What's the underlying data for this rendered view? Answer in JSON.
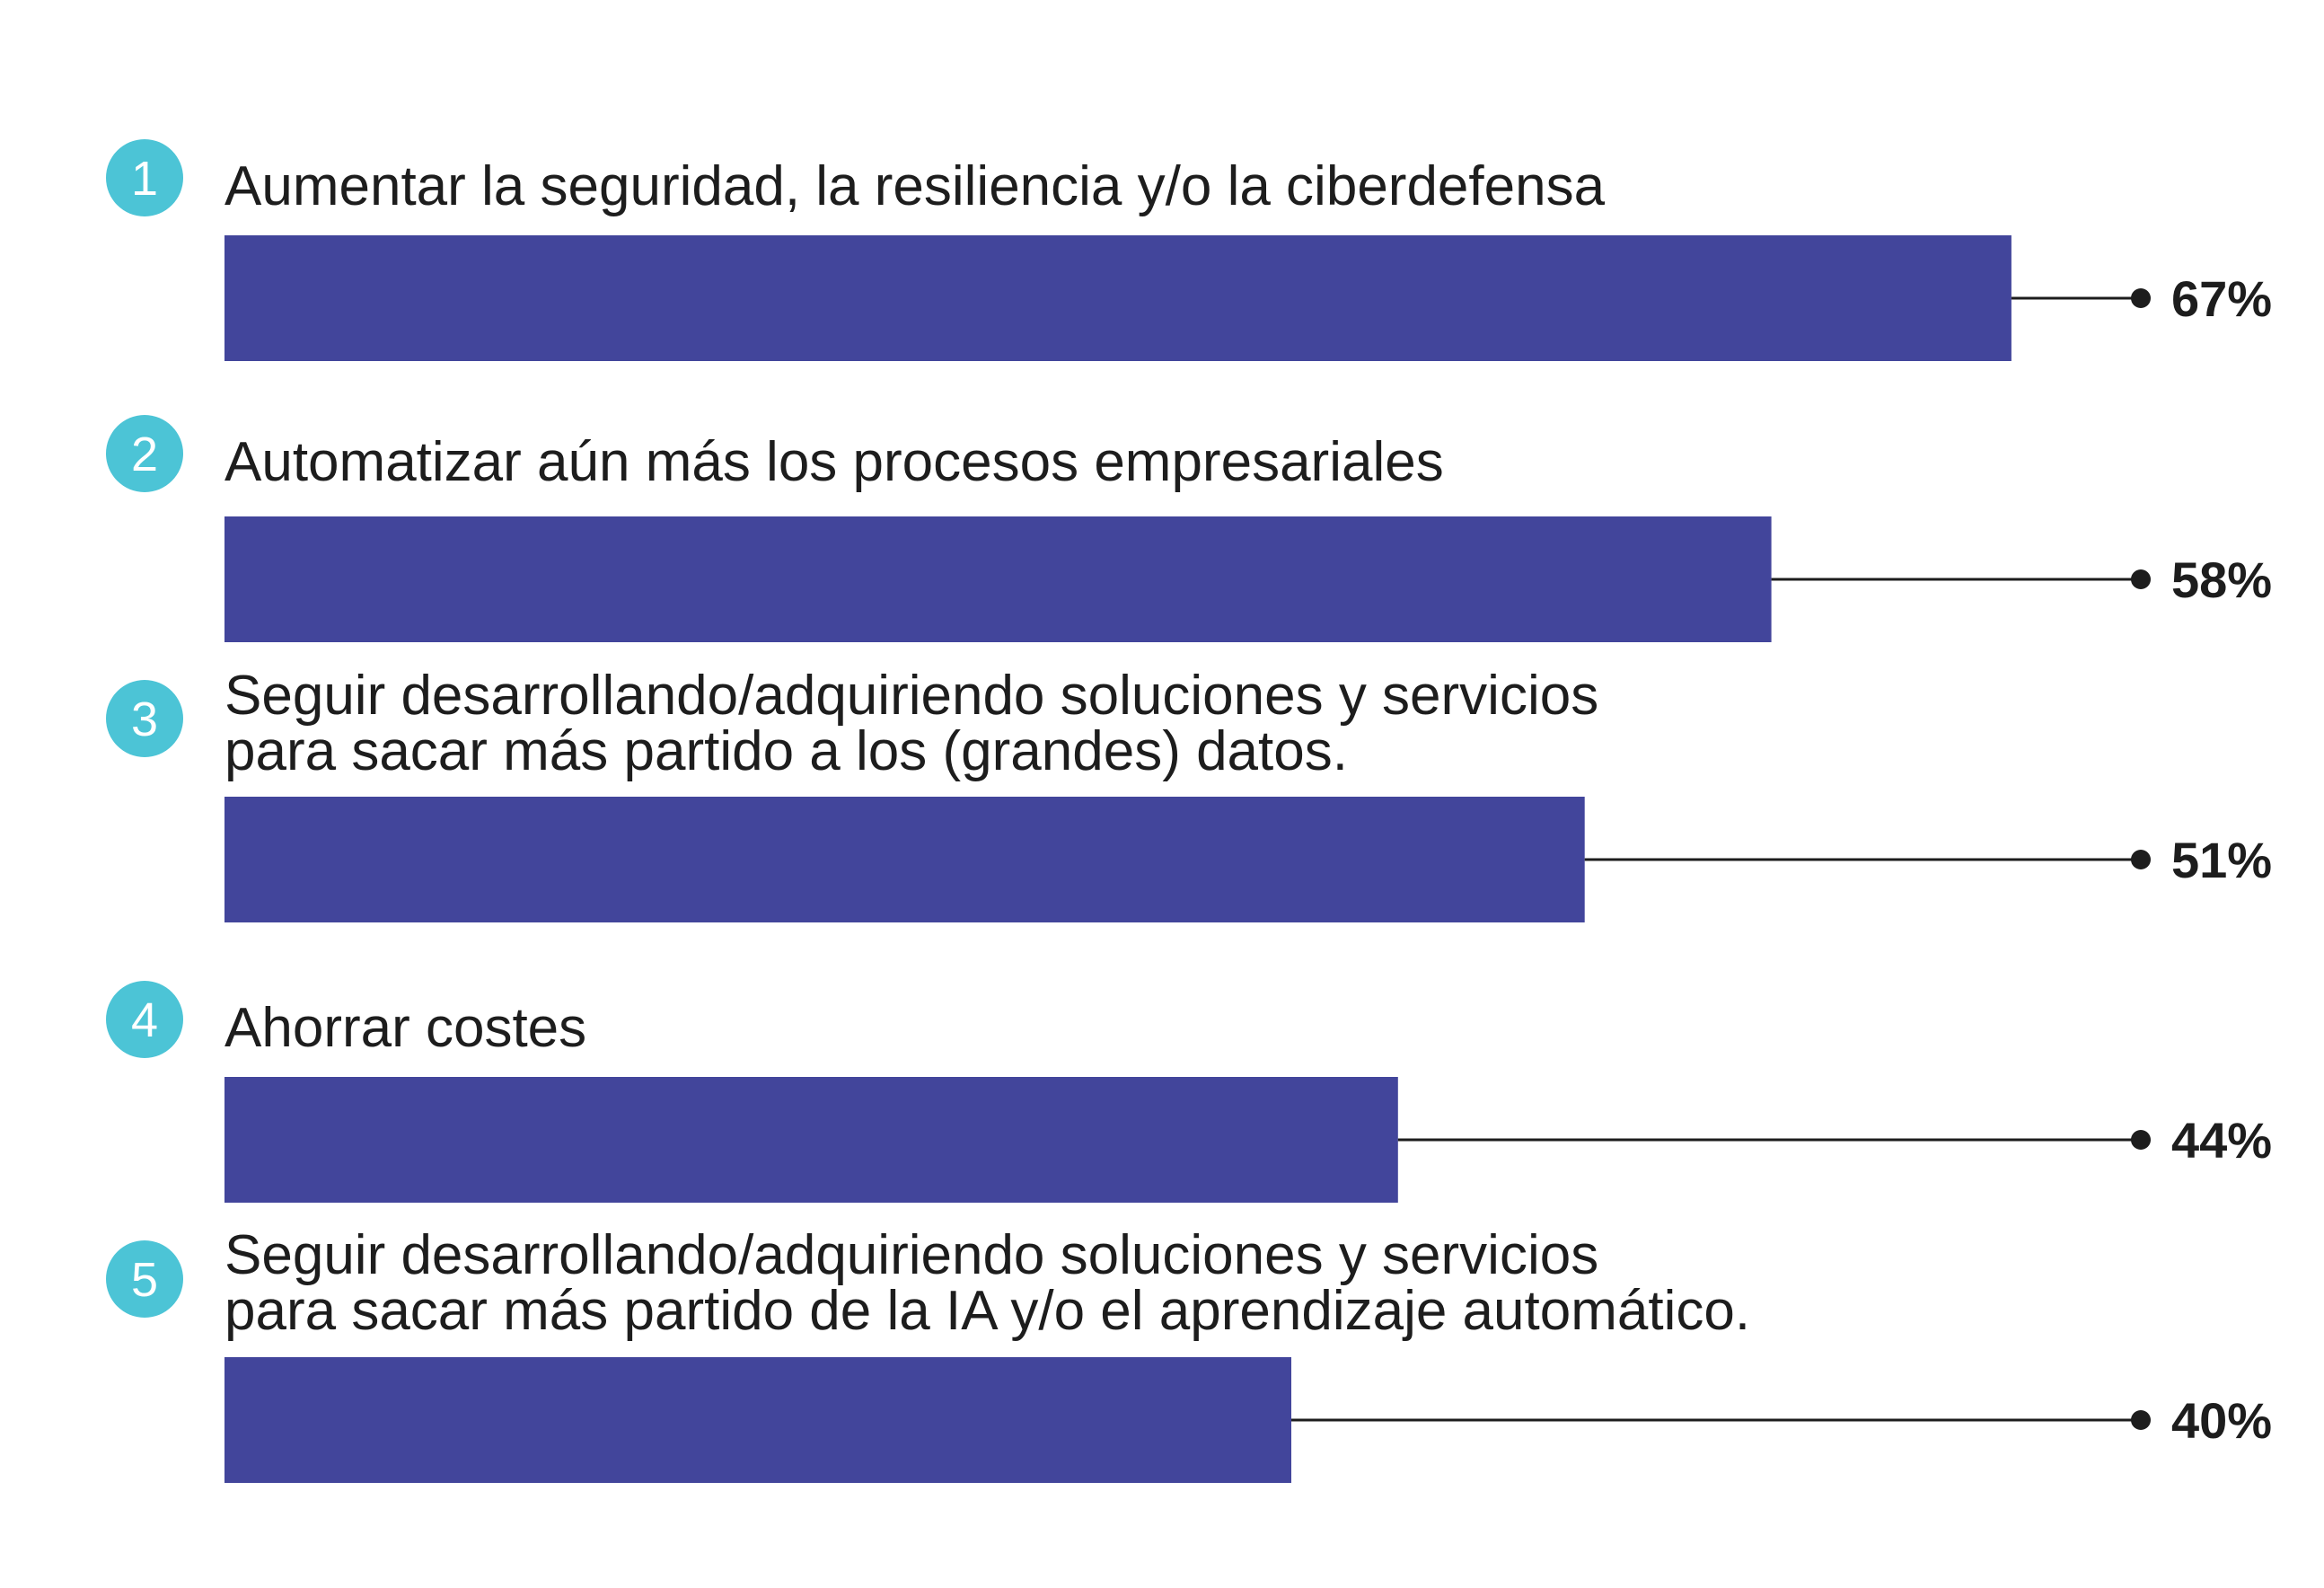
{
  "chart_data": {
    "type": "bar",
    "orientation": "horizontal",
    "items": [
      {
        "rank": "1",
        "label_lines": [
          "Aumentar la seguridad, la resiliencia y/o la ciberdefensa"
        ],
        "value": 67,
        "value_label": "67%"
      },
      {
        "rank": "2",
        "label_lines": [
          "Automatizar aún más los procesos empresariales"
        ],
        "value": 58,
        "value_label": "58%"
      },
      {
        "rank": "3",
        "label_lines": [
          "Seguir desarrollando/adquiriendo soluciones y servicios",
          "para sacar más partido a los (grandes) datos."
        ],
        "value": 51,
        "value_label": "51%"
      },
      {
        "rank": "4",
        "label_lines": [
          "Ahorrar costes"
        ],
        "value": 44,
        "value_label": "44%"
      },
      {
        "rank": "5",
        "label_lines": [
          "Seguir desarrollando/adquiriendo soluciones y servicios",
          "para sacar más partido de la IA y/o el aprendizaje automático."
        ],
        "value": 40,
        "value_label": "40%"
      }
    ],
    "colors": {
      "bar": "#42459b",
      "badge": "#4cc4d6",
      "text": "#1d1d1d",
      "leader": "#1d1d1d"
    },
    "xlim": [
      0,
      100
    ]
  }
}
